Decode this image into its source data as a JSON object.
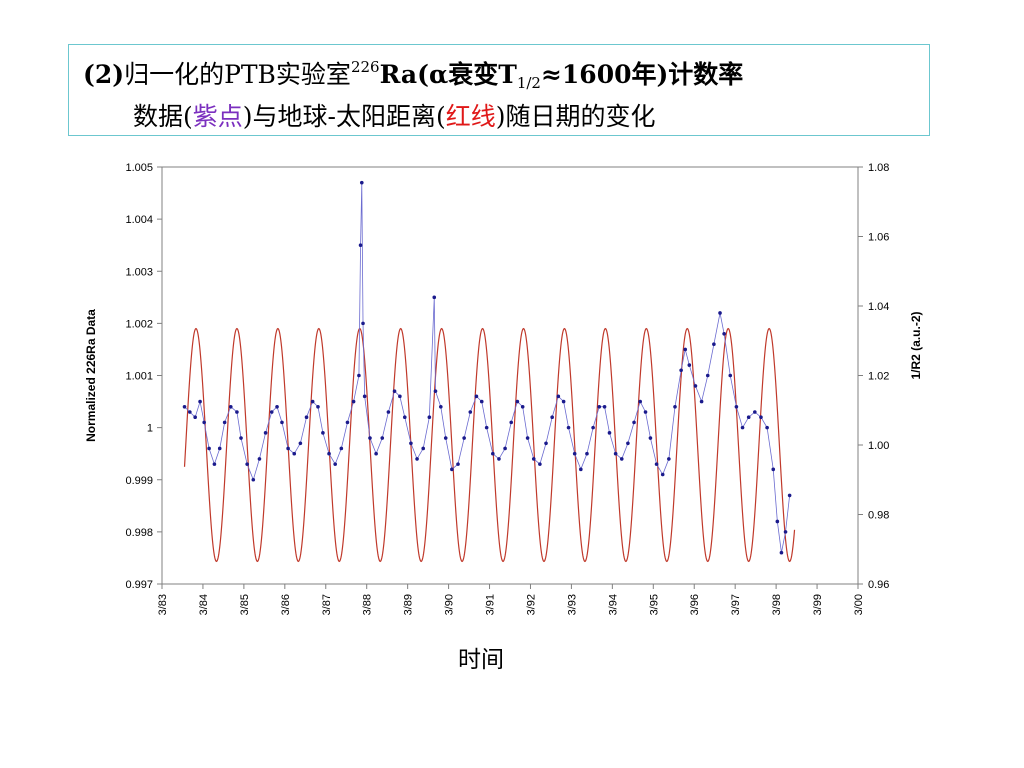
{
  "title": {
    "line1_prefix": "(2)",
    "line1_a": "归一化的PTB实验室",
    "line1_sup": "226",
    "line1_b": "Ra(α衰变T",
    "line1_sub": "1/2",
    "line1_c": "≈1600年)计数率",
    "line2_a": "数据(",
    "line2_purple": "紫点",
    "line2_b": ")与地球-太阳距离(",
    "line2_red": "红线",
    "line2_c": ")随日期的变化"
  },
  "x_axis_label": "时间",
  "chart_data": {
    "type": "line",
    "y_left_label": "Normalized 226Ra Data",
    "y_right_label": "1/R2 (a.u.-2)",
    "x_ticks": [
      "3/83",
      "3/84",
      "3/85",
      "3/86",
      "3/87",
      "3/88",
      "3/89",
      "3/90",
      "3/91",
      "3/92",
      "3/93",
      "3/94",
      "3/95",
      "3/96",
      "3/97",
      "3/98",
      "3/99",
      "3/00"
    ],
    "y_left_ticks": [
      "1.005",
      "1.004",
      "1.003",
      "1.002",
      "1.001",
      "1",
      "0.999",
      "0.998",
      "0.997"
    ],
    "y_right_ticks": [
      "1.08",
      "1.06",
      "1.04",
      "1.02",
      "1.00",
      "0.98",
      "0.96"
    ],
    "y_left_range": [
      0.997,
      1.005
    ],
    "y_right_range": [
      0.96,
      1.08
    ],
    "x_range": [
      1983.17,
      2000.17
    ],
    "series": [
      {
        "role": "226Ra data (purple points)",
        "color": "#1a1a8c",
        "x": [
          1983.72,
          1983.85,
          1983.98,
          1984.1,
          1984.2,
          1984.32,
          1984.45,
          1984.58,
          1984.7,
          1984.85,
          1985.0,
          1985.1,
          1985.25,
          1985.4,
          1985.55,
          1985.7,
          1985.85,
          1985.98,
          1986.1,
          1986.25,
          1986.4,
          1986.55,
          1986.7,
          1986.85,
          1986.98,
          1987.1,
          1987.25,
          1987.4,
          1987.55,
          1987.7,
          1987.85,
          1987.98,
          1988.02,
          1988.05,
          1988.08,
          1988.12,
          1988.25,
          1988.4,
          1988.55,
          1988.7,
          1988.85,
          1988.98,
          1989.1,
          1989.25,
          1989.4,
          1989.55,
          1989.7,
          1989.82,
          1989.85,
          1989.98,
          1990.1,
          1990.25,
          1990.4,
          1990.55,
          1990.7,
          1990.85,
          1990.98,
          1991.1,
          1991.25,
          1991.4,
          1991.55,
          1991.7,
          1991.85,
          1991.98,
          1992.1,
          1992.25,
          1992.4,
          1992.55,
          1992.7,
          1992.85,
          1992.98,
          1993.1,
          1993.25,
          1993.4,
          1993.55,
          1993.7,
          1993.85,
          1993.98,
          1994.1,
          1994.25,
          1994.4,
          1994.55,
          1994.7,
          1994.85,
          1994.98,
          1995.1,
          1995.25,
          1995.4,
          1995.55,
          1995.7,
          1995.85,
          1995.95,
          1996.05,
          1996.2,
          1996.35,
          1996.5,
          1996.65,
          1996.8,
          1996.9,
          1997.05,
          1997.2,
          1997.35,
          1997.5,
          1997.65,
          1997.8,
          1997.95,
          1998.1,
          1998.2,
          1998.3,
          1998.4,
          1998.5
        ],
        "values": [
          1.0004,
          1.0003,
          1.0002,
          1.0005,
          1.0001,
          0.9996,
          0.9993,
          0.9996,
          1.0001,
          1.0004,
          1.0003,
          0.9998,
          0.9993,
          0.999,
          0.9994,
          0.9999,
          1.0003,
          1.0004,
          1.0001,
          0.9996,
          0.9995,
          0.9997,
          1.0002,
          1.0005,
          1.0004,
          0.9999,
          0.9995,
          0.9993,
          0.9996,
          1.0001,
          1.0005,
          1.001,
          1.0035,
          1.0047,
          1.002,
          1.0006,
          0.9998,
          0.9995,
          0.9998,
          1.0003,
          1.0007,
          1.0006,
          1.0002,
          0.9997,
          0.9994,
          0.9996,
          1.0002,
          1.0025,
          1.0007,
          1.0004,
          0.9998,
          0.9992,
          0.9993,
          0.9998,
          1.0003,
          1.0006,
          1.0005,
          1.0,
          0.9995,
          0.9994,
          0.9996,
          1.0001,
          1.0005,
          1.0004,
          0.9998,
          0.9994,
          0.9993,
          0.9997,
          1.0002,
          1.0006,
          1.0005,
          1.0,
          0.9995,
          0.9992,
          0.9995,
          1.0,
          1.0004,
          1.0004,
          0.9999,
          0.9995,
          0.9994,
          0.9997,
          1.0001,
          1.0005,
          1.0003,
          0.9998,
          0.9993,
          0.9991,
          0.9994,
          1.0004,
          1.0011,
          1.0015,
          1.0012,
          1.0008,
          1.0005,
          1.001,
          1.0016,
          1.0022,
          1.0018,
          1.001,
          1.0004,
          1.0,
          1.0002,
          1.0003,
          1.0002,
          1.0,
          0.9992,
          0.9982,
          0.9976,
          0.998,
          0.9987
        ]
      },
      {
        "role": "Earth-Sun distance 1/R2 (red line)",
        "color": "#c0392b",
        "type": "sine",
        "mean": 1.0,
        "amplitude": 0.0335,
        "peak_phase": 0.0,
        "x_start": 1983.72,
        "x_end": 1998.62
      }
    ]
  }
}
